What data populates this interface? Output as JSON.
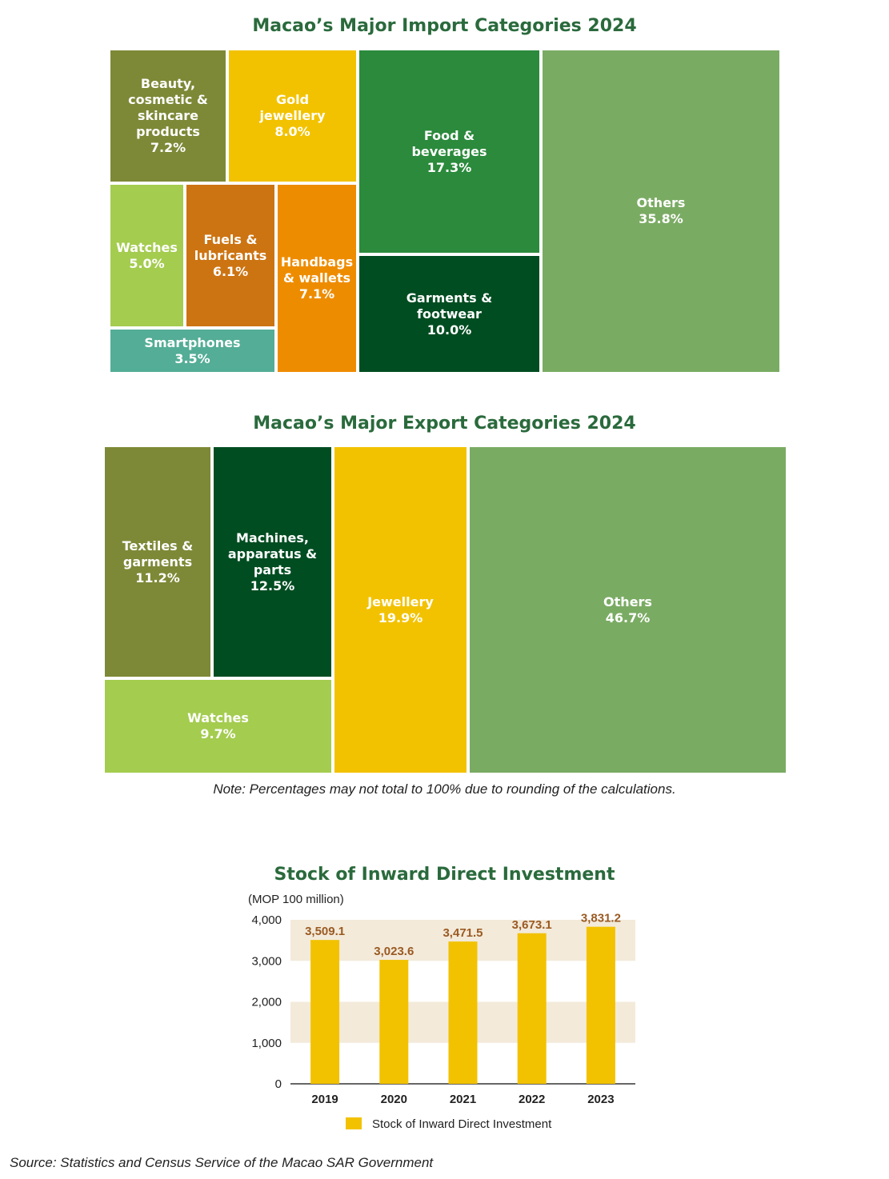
{
  "chart_data": [
    {
      "type": "treemap",
      "title": "Macao’s Major Import Categories 2024",
      "items": [
        {
          "label": "Others",
          "value": 35.8,
          "color": "#7aab63"
        },
        {
          "label": "Food & beverages",
          "value": 17.3,
          "color": "#2b8a3c"
        },
        {
          "label": "Garments & footwear",
          "value": 10.0,
          "color": "#004d21"
        },
        {
          "label": "Gold jewellery",
          "value": 8.0,
          "color": "#f2c200"
        },
        {
          "label": "Beauty, cosmetic & skincare products",
          "value": 7.2,
          "color": "#7e8937"
        },
        {
          "label": "Handbags & wallets",
          "value": 7.1,
          "color": "#ee8c00"
        },
        {
          "label": "Fuels & lubricants",
          "value": 6.1,
          "color": "#cd7412"
        },
        {
          "label": "Watches",
          "value": 5.0,
          "color": "#a4cc4f"
        },
        {
          "label": "Smartphones",
          "value": 3.5,
          "color": "#54ad96"
        }
      ]
    },
    {
      "type": "treemap",
      "title": "Macao’s Major Export Categories 2024",
      "items": [
        {
          "label": "Others",
          "value": 46.7,
          "color": "#7aab63"
        },
        {
          "label": "Jewellery",
          "value": 19.9,
          "color": "#f2c200"
        },
        {
          "label": "Machines, apparatus & parts",
          "value": 12.5,
          "color": "#004d21"
        },
        {
          "label": "Textiles & garments",
          "value": 11.2,
          "color": "#7e8937"
        },
        {
          "label": "Watches",
          "value": 9.7,
          "color": "#a4cc4f"
        }
      ],
      "note": "Note: Percentages may not total to 100% due to rounding of the calculations."
    },
    {
      "type": "bar",
      "title": "Stock of Inward Direct Investment",
      "unit_label": "(MOP 100 million)",
      "categories": [
        "2019",
        "2020",
        "2021",
        "2022",
        "2023"
      ],
      "series": [
        {
          "name": "Stock of Inward Direct Investment",
          "values": [
            3509.1,
            3023.6,
            3471.5,
            3673.1,
            3831.2
          ],
          "value_labels": [
            "3,509.1",
            "3,023.6",
            "3,471.5",
            "3,673.1",
            "3,831.2"
          ]
        }
      ],
      "ylim": [
        0,
        4000
      ],
      "yticks": [
        0,
        1000,
        2000,
        3000,
        4000
      ],
      "ytick_labels": [
        "0",
        "1,000",
        "2,000",
        "3,000",
        "4,000"
      ],
      "bar_color": "#f2c200",
      "band_color": "#f3eada",
      "value_label_color": "#9a5a22",
      "legend_position": "bottom"
    }
  ],
  "source": "Source: Statistics and Census Service of the Macao SAR Government"
}
